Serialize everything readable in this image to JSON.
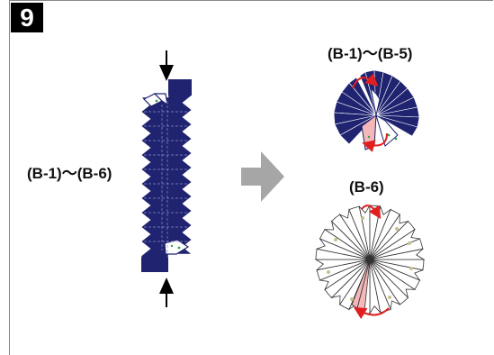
{
  "step_number": "9",
  "labels": {
    "left": "(B-1)～(B-6)",
    "top_right": "(B-1)～(B-5)",
    "bottom_right": "(B-6)"
  },
  "colors": {
    "paper_blue": "#1f2370",
    "accent_red": "#e02020",
    "pink": "#f4b8b8",
    "star": "#c8c08a",
    "arrow_gray": "#a6a6a6"
  },
  "icons": [
    "down-arrow-icon",
    "up-arrow-icon",
    "right-arrow-icon",
    "curved-red-arrow-icon"
  ]
}
